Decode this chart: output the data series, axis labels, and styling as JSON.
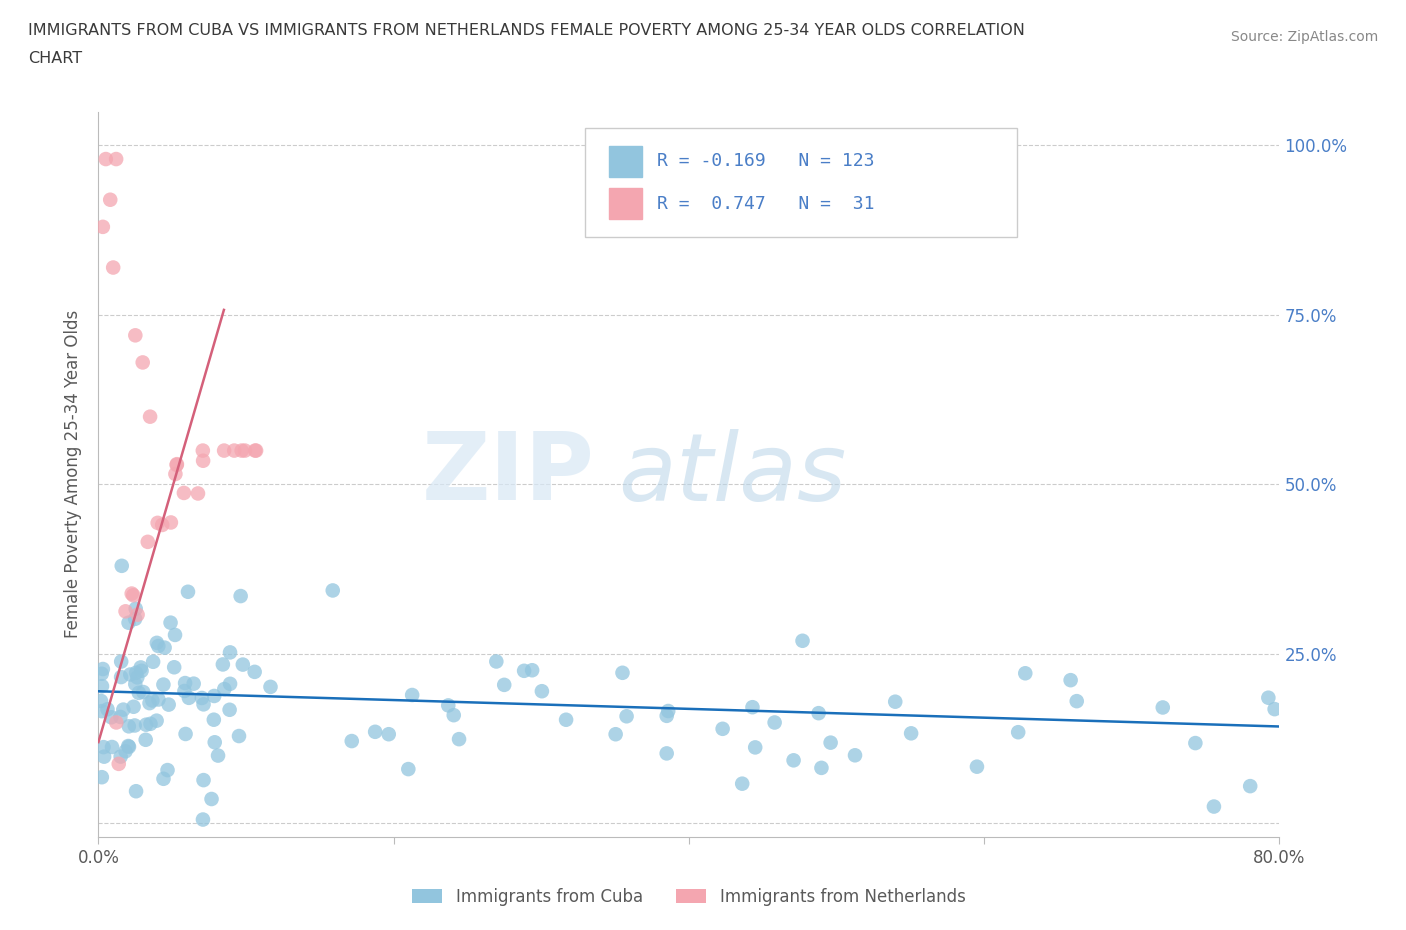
{
  "title_line1": "IMMIGRANTS FROM CUBA VS IMMIGRANTS FROM NETHERLANDS FEMALE POVERTY AMONG 25-34 YEAR OLDS CORRELATION",
  "title_line2": "CHART",
  "source": "Source: ZipAtlas.com",
  "ylabel": "Female Poverty Among 25-34 Year Olds",
  "xlim": [
    0.0,
    0.8
  ],
  "ylim": [
    -0.02,
    1.05
  ],
  "x_ticks": [
    0.0,
    0.2,
    0.4,
    0.6,
    0.8
  ],
  "x_tick_labels": [
    "0.0%",
    "",
    "",
    "",
    "80.0%"
  ],
  "y_ticks": [
    0.0,
    0.25,
    0.5,
    0.75,
    1.0
  ],
  "y_tick_labels_right": [
    "",
    "25.0%",
    "50.0%",
    "75.0%",
    "100.0%"
  ],
  "r_cuba": -0.169,
  "n_cuba": 123,
  "r_netherlands": 0.747,
  "n_netherlands": 31,
  "color_cuba": "#92C5DE",
  "color_netherlands": "#F4A6B0",
  "line_color_cuba": "#1a6fba",
  "line_color_netherlands": "#d4607a",
  "watermark_zip": "ZIP",
  "watermark_atlas": "atlas",
  "legend_label_cuba": "Immigrants from Cuba",
  "legend_label_netherlands": "Immigrants from Netherlands",
  "cuba_intercept": 0.195,
  "cuba_slope": -0.065,
  "neth_intercept": 0.12,
  "neth_slope": 7.5,
  "title_color": "#3a3a3a",
  "axis_label_color": "#5a5a5a",
  "tick_label_color": "#4a7ec7",
  "grid_color": "#cccccc",
  "source_color": "#888888"
}
